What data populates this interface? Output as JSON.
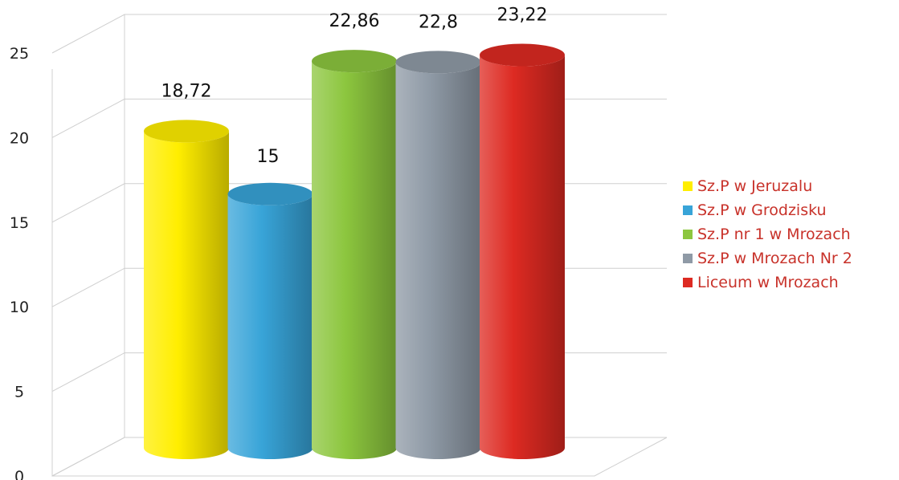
{
  "chart_data": {
    "type": "bar",
    "categories": [
      "Sz.P w Jeruzalu",
      "Sz.P w Grodzisku",
      "Sz.P nr 1 w Mrozach",
      "Sz.P w Mrozach Nr 2",
      "Liceum w Mrozach"
    ],
    "values": [
      18.72,
      15,
      22.86,
      22.8,
      23.22
    ],
    "data_labels": [
      "18,72",
      "15",
      "22,86",
      "22,8",
      "23,22"
    ],
    "colors": [
      "#ffee00",
      "#38a4d8",
      "#8cc63e",
      "#8f9aa6",
      "#dd2a22"
    ],
    "ylim": [
      0,
      25
    ],
    "yticks": [
      0,
      5,
      10,
      15,
      20,
      25
    ],
    "ytick_labels": [
      "0",
      "5",
      "10",
      "15",
      "20",
      "25"
    ],
    "grid": true,
    "legend_position": "right",
    "style": "3d-cylinder"
  }
}
